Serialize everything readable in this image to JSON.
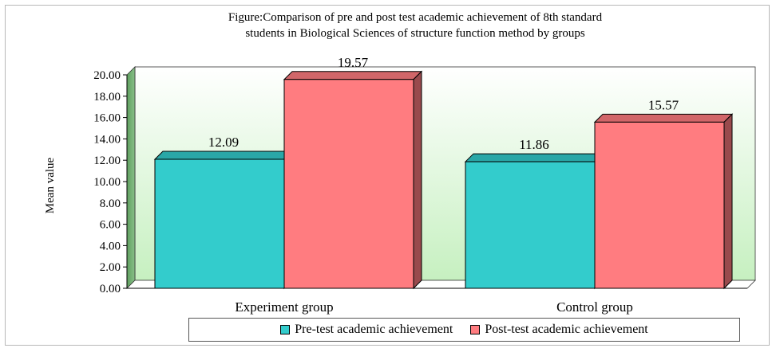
{
  "chart_data": {
    "type": "bar",
    "title_lines": [
      "Figure:Comparison of pre and post test academic achievement of 8th standard",
      "students in Biological Sciences of structure function  method by groups"
    ],
    "categories": [
      "Experiment group",
      "Control group"
    ],
    "series": [
      {
        "name": "Pre-test academic achievement",
        "values": [
          12.09,
          11.86
        ],
        "color": "#33cccc"
      },
      {
        "name": "Post-test academic achievement",
        "values": [
          19.57,
          15.57
        ],
        "color": "#ff7c80"
      }
    ],
    "data_labels": [
      [
        "12.09",
        "11.86"
      ],
      [
        "19.57",
        "15.57"
      ]
    ],
    "xlabel": "",
    "ylabel": "Mean value",
    "ylim": [
      0,
      20
    ],
    "yticks": [
      "0.00",
      "2.00",
      "4.00",
      "6.00",
      "8.00",
      "10.00",
      "12.00",
      "14.00",
      "16.00",
      "18.00",
      "20.00"
    ],
    "grid": false,
    "legend_position": "bottom",
    "plot_background": "gradient light-green",
    "style": "3d"
  }
}
